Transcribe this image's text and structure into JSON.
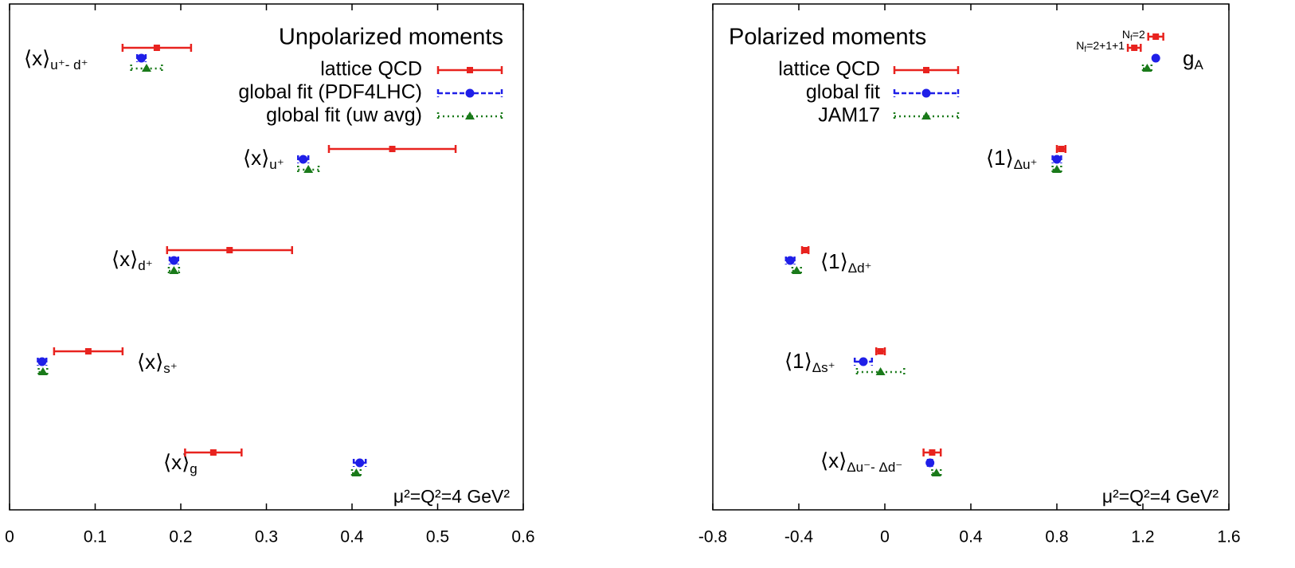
{
  "chart_data": [
    {
      "type": "errorbar",
      "title": "Unpolarized moments",
      "annotation": "μ²=Q²=4 GeV²",
      "categories": [
        {
          "main": "⟨x⟩",
          "sub": "u⁺- d⁺"
        },
        {
          "main": "⟨x⟩",
          "sub": "u⁺"
        },
        {
          "main": "⟨x⟩",
          "sub": "d⁺"
        },
        {
          "main": "⟨x⟩",
          "sub": "s⁺"
        },
        {
          "main": "⟨x⟩",
          "sub": "g"
        }
      ],
      "series": [
        {
          "name": "lattice QCD",
          "color": "#e8231f",
          "marker": "square",
          "dash": "solid",
          "values": [
            0.172,
            0.447,
            0.257,
            0.092,
            0.238
          ],
          "errors": [
            0.04,
            0.074,
            0.073,
            0.04,
            0.033
          ]
        },
        {
          "name": "global fit (PDF4LHC)",
          "color": "#1f1fe8",
          "marker": "circle",
          "dash": "dashed",
          "values": [
            0.154,
            0.343,
            0.192,
            0.038,
            0.409
          ],
          "errors": [
            0.005,
            0.006,
            0.005,
            0.005,
            0.007
          ]
        },
        {
          "name": "global fit (uw avg)",
          "color": "#1a7a1a",
          "marker": "triangle",
          "dash": "dotted",
          "values": [
            0.16,
            0.349,
            0.192,
            0.039,
            0.405
          ],
          "errors": [
            0.018,
            0.012,
            0.006,
            0.005,
            0.005
          ]
        }
      ],
      "xlim": [
        0,
        0.6
      ],
      "xticks": [
        0,
        0.1,
        0.2,
        0.3,
        0.4,
        0.5,
        0.6
      ]
    },
    {
      "type": "errorbar",
      "title": "Polarized moments",
      "annotation": "μ²=Q²=4 GeV²",
      "categories": [
        {
          "main": "g",
          "sub": "A"
        },
        {
          "main": "⟨1⟩",
          "sub": "Δu⁺"
        },
        {
          "main": "⟨1⟩",
          "sub": "Δd⁺"
        },
        {
          "main": "⟨1⟩",
          "sub": "Δs⁺"
        },
        {
          "main": "⟨x⟩",
          "sub": "Δu⁻- Δd⁻"
        }
      ],
      "series": [
        {
          "name": "lattice QCD",
          "color": "#e8231f",
          "marker": "square",
          "dash": "solid",
          "values": [
            [
              1.26,
              1.16
            ],
            0.82,
            -0.37,
            -0.02,
            0.22
          ],
          "errors": [
            [
              0.035,
              0.03
            ],
            0.02,
            0.015,
            0.02,
            0.04
          ],
          "point_labels": [
            [
              {
                "main": "N",
                "sub": "f",
                "rest": "=2"
              },
              {
                "main": "N",
                "sub": "f",
                "rest": "=2+1+1"
              }
            ],
            null,
            null,
            null,
            null
          ]
        },
        {
          "name": "global fit",
          "color": "#1f1fe8",
          "marker": "circle",
          "dash": "dashed",
          "values": [
            1.26,
            0.8,
            -0.44,
            -0.1,
            0.21
          ],
          "errors": [
            0.005,
            0.02,
            0.02,
            0.04,
            0.01
          ]
        },
        {
          "name": "JAM17",
          "color": "#1a7a1a",
          "marker": "triangle",
          "dash": "dotted",
          "values": [
            1.22,
            0.8,
            -0.41,
            -0.02,
            0.24
          ],
          "errors": [
            0.02,
            0.02,
            0.02,
            0.11,
            0.02
          ]
        }
      ],
      "xlim": [
        -0.8,
        1.6
      ],
      "xticks": [
        -0.8,
        -0.4,
        0,
        0.4,
        0.8,
        1.2,
        1.6
      ]
    }
  ]
}
